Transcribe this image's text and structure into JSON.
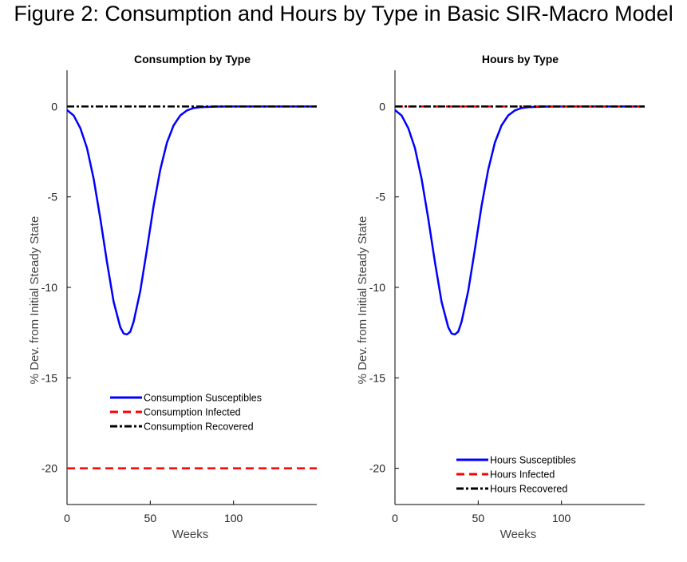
{
  "figure": {
    "title": "Figure 2: Consumption and Hours by Type in Basic SIR-Macro Model"
  },
  "chart_data": [
    {
      "type": "line",
      "title": "Consumption by Type",
      "xlabel": "Weeks",
      "ylabel": "% Dev. from Initial Steady State",
      "xlim": [
        0,
        150
      ],
      "ylim": [
        -22,
        2
      ],
      "xticks": [
        0,
        50,
        100
      ],
      "yticks": [
        0,
        -5,
        -10,
        -15,
        -20
      ],
      "grid": false,
      "legend_position": "lower-center",
      "series": [
        {
          "name": "Consumption Susceptibles",
          "color": "#0000ff",
          "style": "solid",
          "x": [
            0,
            4,
            8,
            12,
            16,
            20,
            24,
            28,
            32,
            34,
            36,
            38,
            40,
            44,
            48,
            52,
            56,
            60,
            64,
            68,
            72,
            76,
            80,
            90,
            100,
            120,
            150
          ],
          "y": [
            -0.2,
            -0.5,
            -1.2,
            -2.3,
            -4.0,
            -6.2,
            -8.6,
            -10.8,
            -12.2,
            -12.55,
            -12.6,
            -12.45,
            -11.9,
            -10.2,
            -7.9,
            -5.5,
            -3.5,
            -2.0,
            -1.05,
            -0.5,
            -0.22,
            -0.09,
            -0.04,
            -0.01,
            0,
            0,
            0
          ]
        },
        {
          "name": "Consumption Infected",
          "color": "#ff0000",
          "style": "dashed",
          "x": [
            0,
            150
          ],
          "y": [
            -20,
            -20
          ]
        },
        {
          "name": "Consumption Recovered",
          "color": "#000000",
          "style": "dashdot",
          "x": [
            0,
            150
          ],
          "y": [
            0,
            0
          ]
        }
      ]
    },
    {
      "type": "line",
      "title": "Hours by Type",
      "xlabel": "Weeks",
      "ylabel": "% Dev. from Initial Steady State",
      "xlim": [
        0,
        150
      ],
      "ylim": [
        -22,
        2
      ],
      "xticks": [
        0,
        50,
        100
      ],
      "yticks": [
        0,
        -5,
        -10,
        -15,
        -20
      ],
      "grid": false,
      "legend_position": "lower-center",
      "series": [
        {
          "name": "Hours Susceptibles",
          "color": "#0000ff",
          "style": "solid",
          "x": [
            0,
            4,
            8,
            12,
            16,
            20,
            24,
            28,
            32,
            34,
            36,
            38,
            40,
            44,
            48,
            52,
            56,
            60,
            64,
            68,
            72,
            76,
            80,
            90,
            100,
            120,
            150
          ],
          "y": [
            -0.2,
            -0.5,
            -1.2,
            -2.3,
            -4.0,
            -6.2,
            -8.6,
            -10.8,
            -12.2,
            -12.55,
            -12.6,
            -12.45,
            -11.9,
            -10.2,
            -7.9,
            -5.5,
            -3.5,
            -2.0,
            -1.05,
            -0.5,
            -0.22,
            -0.09,
            -0.04,
            -0.01,
            0,
            0,
            0
          ]
        },
        {
          "name": "Hours Infected",
          "color": "#ff0000",
          "style": "dashed",
          "x": [
            0,
            150
          ],
          "y": [
            0,
            0
          ]
        },
        {
          "name": "Hours Recovered",
          "color": "#000000",
          "style": "dashdot",
          "x": [
            0,
            150
          ],
          "y": [
            0,
            0
          ]
        }
      ]
    }
  ]
}
